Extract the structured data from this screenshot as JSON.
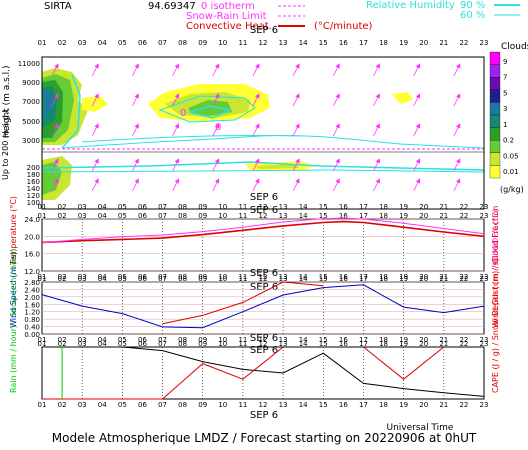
{
  "header": {
    "site": "SIRTA",
    "code": "94.69347",
    "legend_isotherm": "0 isotherm",
    "legend_snow_rain": "Snow-Rain Limit",
    "legend_convective": "Convective Heat.",
    "legend_convective_unit": "(°C/minute)",
    "legend_rh": "Relative Humidity",
    "rh_90": "90 %",
    "rh_60": "60 %"
  },
  "hours": [
    "01",
    "02",
    "03",
    "04",
    "05",
    "06",
    "07",
    "08",
    "09",
    "10",
    "11",
    "12",
    "13",
    "14",
    "15",
    "16",
    "17",
    "18",
    "19",
    "20",
    "21",
    "22",
    "23"
  ],
  "date_label": "SEP  6",
  "colors": {
    "isotherm": "#ff33ff",
    "snow_rain": "#ff33ff",
    "convective": "#e00000",
    "rh": "#2ee0e0",
    "temperature": "#e00000",
    "humidex": "#ff33ff",
    "wind_speed": "#0000cc",
    "wind_gust": "#e00000",
    "rain": "#00cc00",
    "snow": "#0000cc",
    "cloud_fraction": "#000000",
    "cape": "#e00000"
  },
  "cloud_panel": {
    "ylabel": "Height  (m a.s.l.)",
    "ylabel2": "Up to 200 m a.g.l.",
    "ticks_upper": [
      "11000",
      "9000",
      "7000",
      "5000",
      "3000"
    ],
    "ticks_lower": [
      "200",
      "180",
      "160",
      "140",
      "120",
      "100"
    ],
    "colorbar_title": "Clouds",
    "colorbar_ticks": [
      "9",
      "7",
      "5",
      "3",
      "1",
      "0.2",
      "0.05",
      "0.01"
    ],
    "colorbar_unit": "(g/kg)",
    "colorbar_colors": [
      "#ff00ff",
      "#a020f0",
      "#6a0dad",
      "#1e1e8c",
      "#1f77a8",
      "#138a70",
      "#2aa02a",
      "#66cc33",
      "#c8e632",
      "#ffff33"
    ]
  },
  "chart_data": [
    {
      "type": "line",
      "title": "SEP  6",
      "ylabel": "Temperature (°C)",
      "y2label": "HUMIDEX (°C)",
      "ylim": [
        12,
        24
      ],
      "yticks": [
        "24.0",
        "20.0",
        "16.0",
        "12.0"
      ],
      "x": [
        1,
        3,
        5,
        7,
        9,
        11,
        13,
        15,
        16,
        17,
        19,
        21,
        23
      ],
      "series": [
        {
          "name": "Temperature",
          "values": [
            18.6,
            19.0,
            19.3,
            19.6,
            20.4,
            21.4,
            22.4,
            23.2,
            23.4,
            23.2,
            22.1,
            21.0,
            20.0
          ]
        },
        {
          "name": "HUMIDEX",
          "values": [
            18.5,
            19.3,
            19.9,
            20.3,
            21.1,
            22.1,
            23.3,
            24.1,
            24.2,
            24.0,
            23.0,
            21.8,
            20.6
          ]
        }
      ]
    },
    {
      "type": "line",
      "title": "SEP  6",
      "ylabel": "Wind Speed (m / s)",
      "y2label": "Wind Gust (m / s)",
      "ylim": [
        0,
        2.8
      ],
      "yticks": [
        "2.80",
        "2.40",
        "2.00",
        "1.60",
        "1.20",
        "0.80",
        "0.40",
        "0.00"
      ],
      "x": [
        1,
        3,
        5,
        7,
        9,
        11,
        13,
        15,
        17,
        19,
        21,
        23
      ],
      "series": [
        {
          "name": "Wind Speed",
          "values": [
            2.12,
            1.5,
            1.1,
            0.38,
            0.34,
            1.2,
            2.1,
            2.5,
            2.65,
            1.45,
            1.15,
            1.5
          ]
        },
        {
          "name": "Wind Gust",
          "values": [
            null,
            null,
            null,
            0.55,
            1.0,
            1.7,
            2.8,
            2.6,
            null,
            null,
            null,
            null
          ]
        }
      ]
    },
    {
      "type": "line",
      "title": "SEP  6",
      "xlabel": "Universal Time",
      "ylabel": "Rain (mm / hour) / Snow (cm / hour)",
      "y2label": "CAPE (J / g) / Snow Depth (cm) / Cloud Fraction",
      "ylim": [
        0,
        1
      ],
      "x": [
        1,
        3,
        5,
        7,
        9,
        11,
        13,
        15,
        17,
        19,
        21,
        23
      ],
      "series": [
        {
          "name": "Cloud Fraction",
          "values": [
            1.0,
            1.0,
            1.0,
            0.93,
            0.72,
            0.57,
            0.5,
            0.88,
            0.3,
            0.2,
            0.12,
            0.05
          ]
        },
        {
          "name": "CAPE",
          "values": [
            0,
            0,
            0,
            0,
            0.68,
            0.38,
            1.0,
            null,
            1.0,
            0.38,
            1.0,
            null
          ]
        },
        {
          "name": "Rain",
          "values": [
            0,
            0.9,
            0,
            0,
            0,
            0,
            0,
            0,
            0,
            0,
            0,
            0
          ]
        }
      ]
    }
  ],
  "footer": "Modele Atmospherique LMDZ / Forecast starting on 20220906 at 0hUT"
}
